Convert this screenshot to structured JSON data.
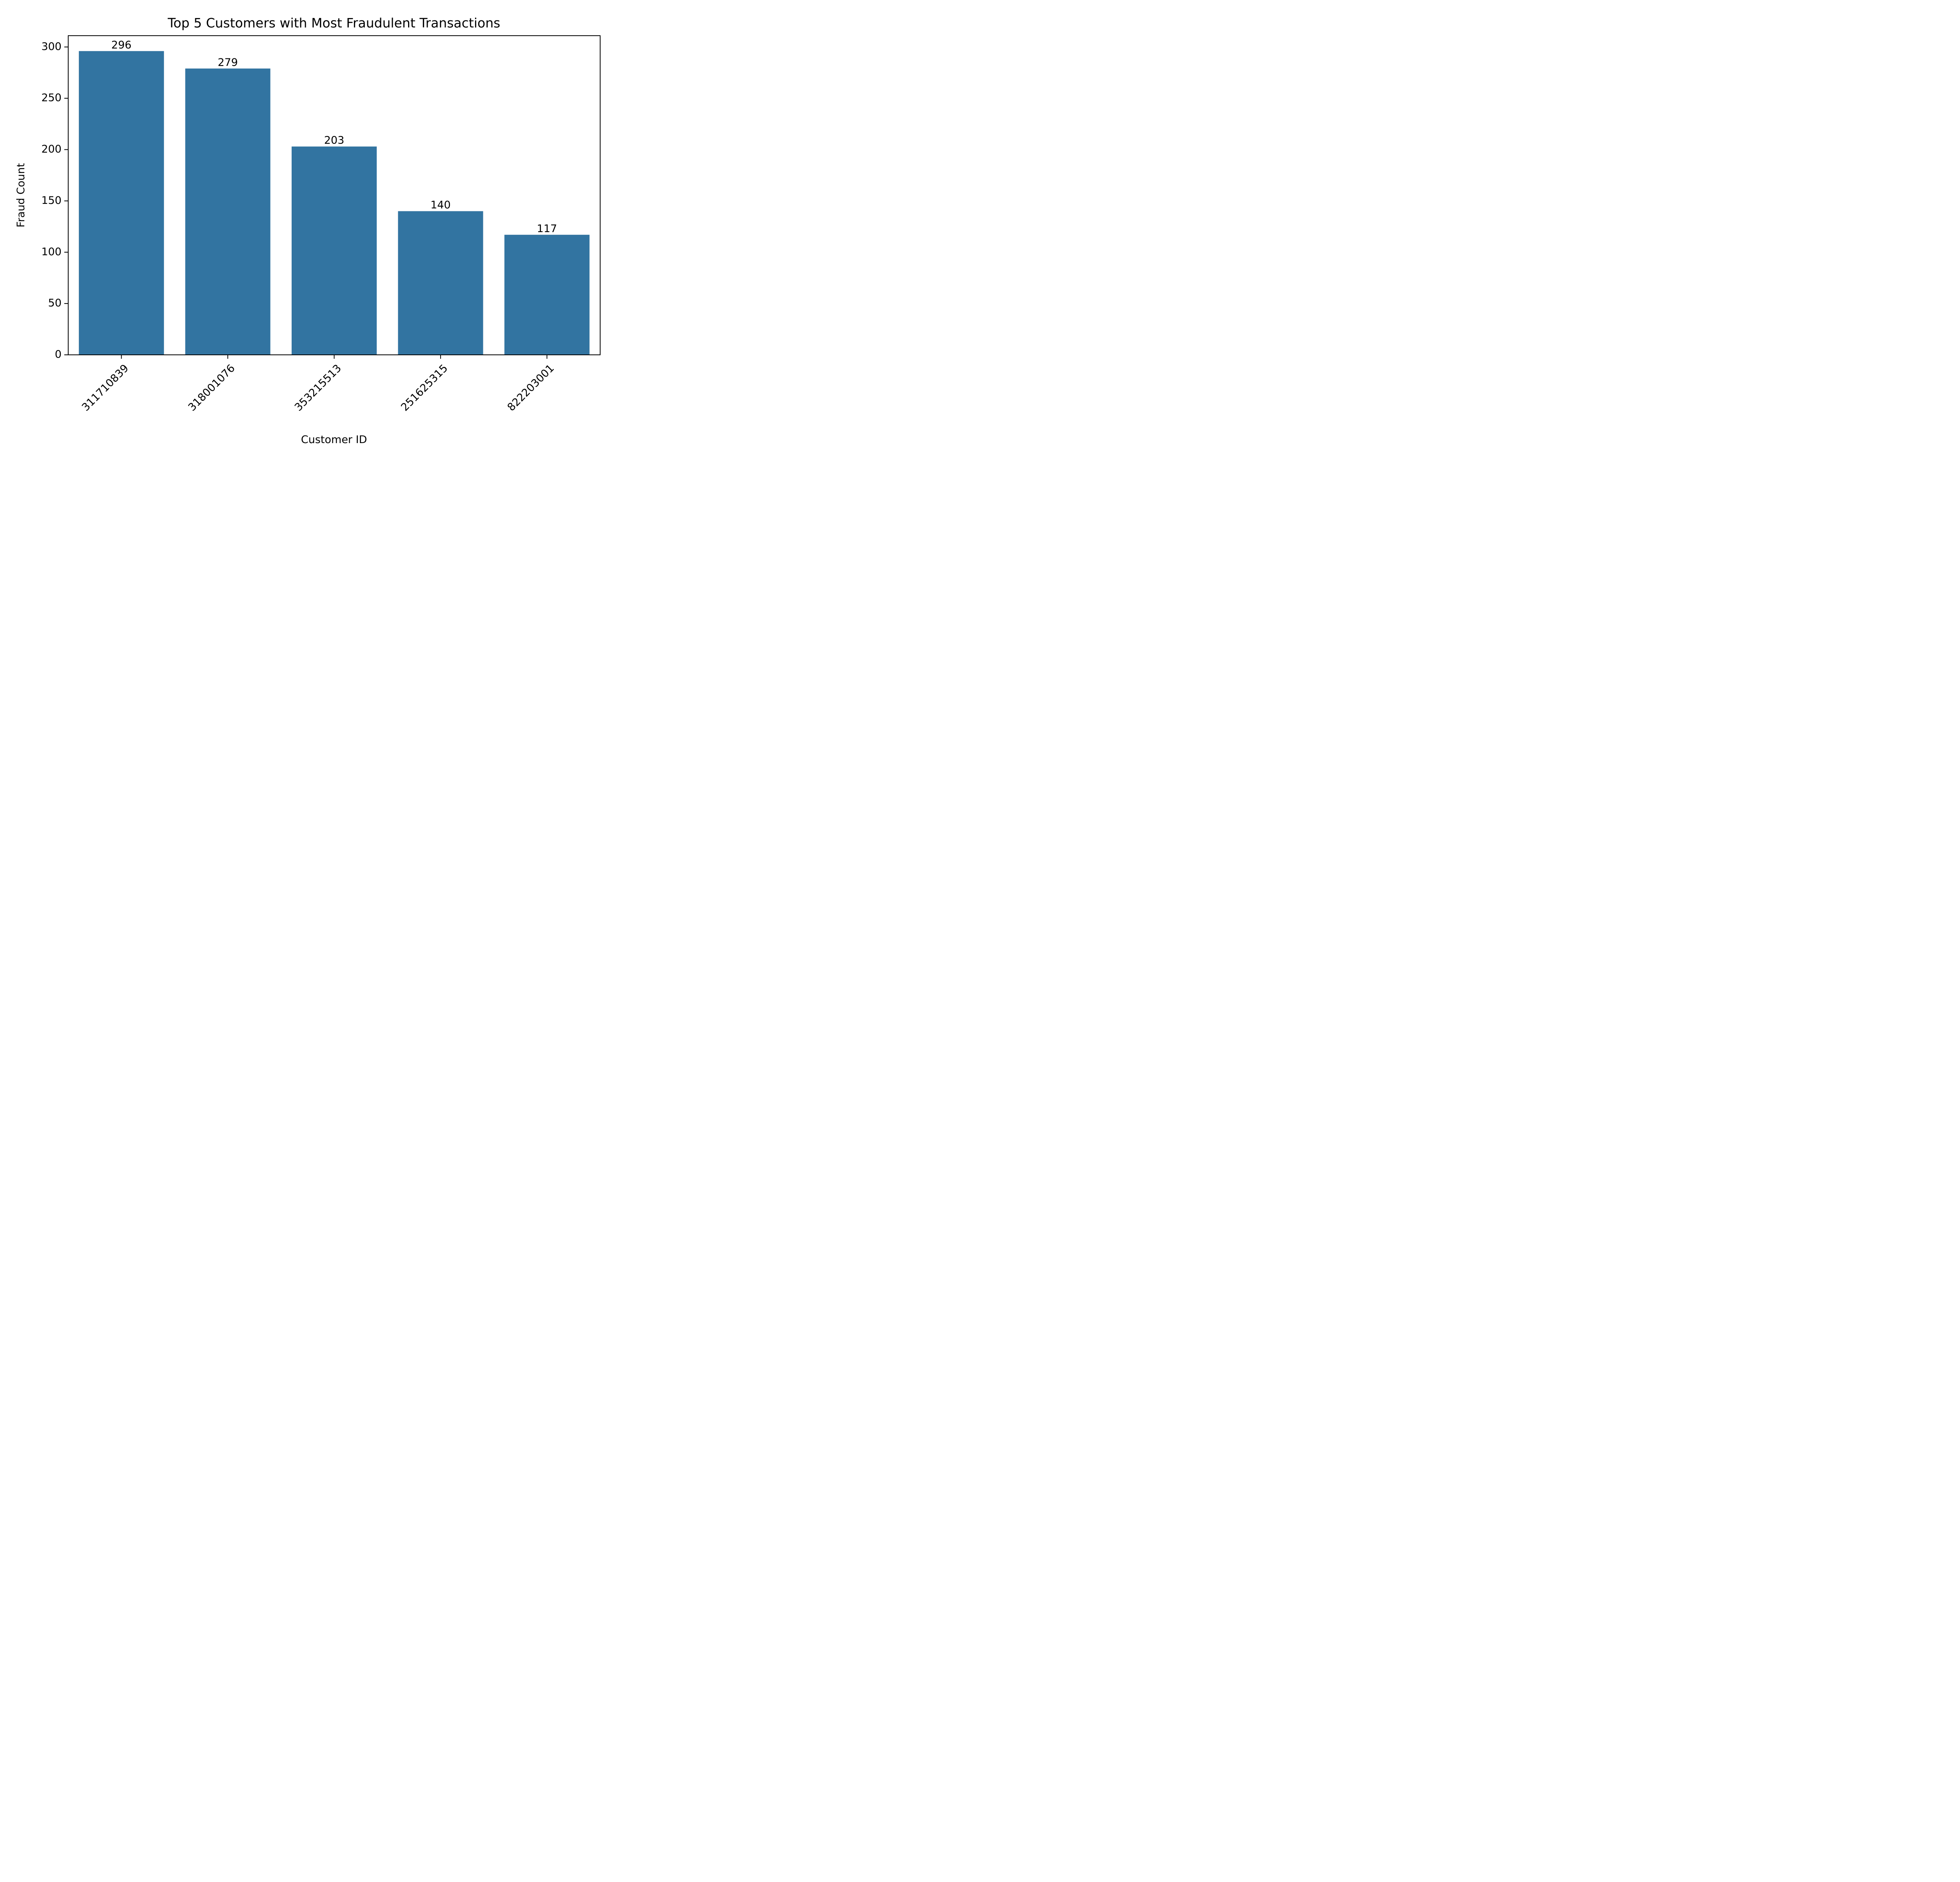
{
  "chart_data": {
    "type": "bar",
    "title": "Top 5 Customers with Most Fraudulent Transactions",
    "xlabel": "Customer ID",
    "ylabel": "Fraud Count",
    "categories": [
      "311710839",
      "318001076",
      "353215513",
      "251625315",
      "822203001"
    ],
    "values": [
      296,
      279,
      203,
      140,
      117
    ],
    "data_labels": [
      "296",
      "279",
      "203",
      "140",
      "117"
    ],
    "ylim": [
      0,
      311
    ],
    "yticks": [
      0,
      50,
      100,
      150,
      200,
      250,
      300
    ],
    "ytick_labels": [
      "0",
      "50",
      "100",
      "150",
      "200",
      "250",
      "300"
    ],
    "grid": false,
    "legend": "none",
    "bar_color": "#3274a1",
    "x_tick_rotation": -45
  }
}
